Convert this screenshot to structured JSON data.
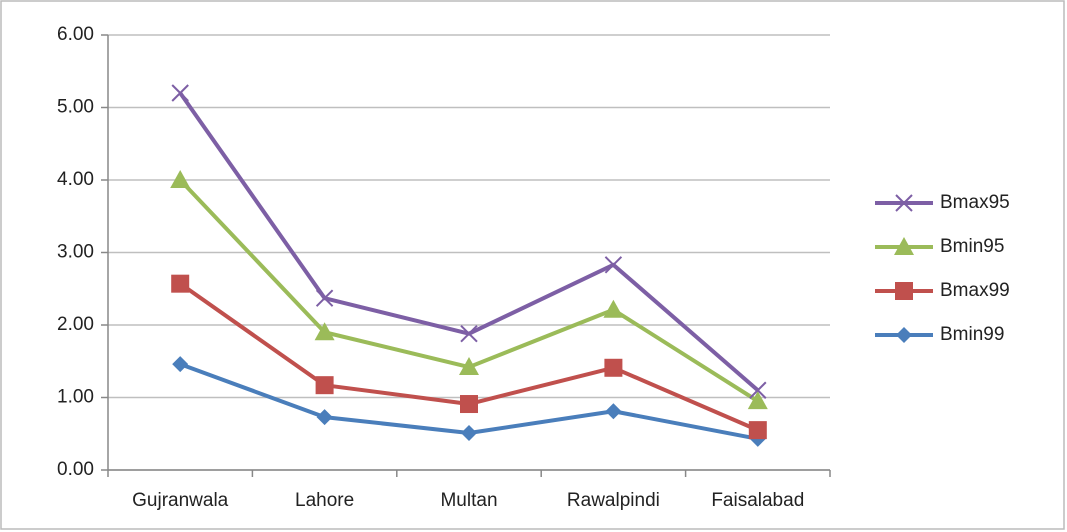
{
  "chart_data": {
    "type": "line",
    "categories": [
      "Gujranwala",
      "Lahore",
      "Multan",
      "Rawalpindi",
      "Faisalabad"
    ],
    "series": [
      {
        "name": "Bmax95",
        "color": "#7d5fa5",
        "marker": "x",
        "values": [
          5.2,
          2.37,
          1.88,
          2.83,
          1.1
        ]
      },
      {
        "name": "Bmin95",
        "color": "#9bbb59",
        "marker": "triangle",
        "values": [
          4.0,
          1.9,
          1.42,
          2.21,
          0.95
        ]
      },
      {
        "name": "Bmax99",
        "color": "#c0504d",
        "marker": "square",
        "values": [
          2.57,
          1.17,
          0.91,
          1.41,
          0.55
        ]
      },
      {
        "name": "Bmin99",
        "color": "#4a7ebb",
        "marker": "diamond",
        "values": [
          1.46,
          0.73,
          0.51,
          0.81,
          0.43
        ]
      }
    ],
    "ylim": [
      0,
      6
    ],
    "yticks": [
      {
        "value": 0,
        "label": "0.00"
      },
      {
        "value": 1,
        "label": "1.00"
      },
      {
        "value": 2,
        "label": "2.00"
      },
      {
        "value": 3,
        "label": "3.00"
      },
      {
        "value": 4,
        "label": "4.00"
      },
      {
        "value": 5,
        "label": "5.00"
      },
      {
        "value": 6,
        "label": "6.00"
      }
    ],
    "grid": true,
    "legend": "right"
  }
}
